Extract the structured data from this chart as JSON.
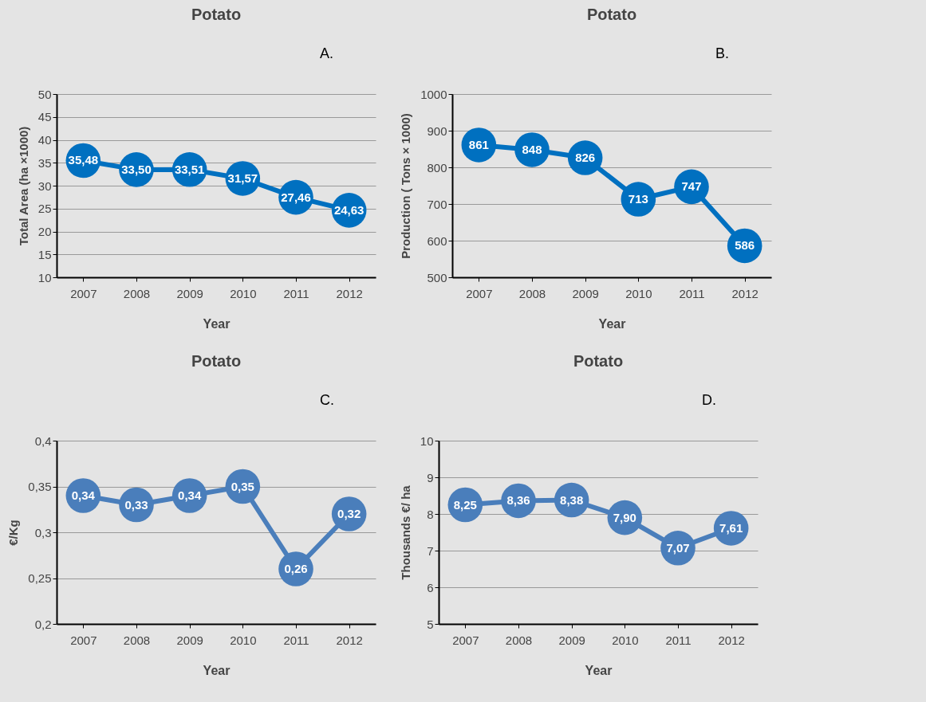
{
  "chart_data": [
    {
      "type": "line",
      "title": "Potato",
      "xlabel": "Year",
      "ylabel": "Total Area (ha ×1000)",
      "annotations": [
        "A."
      ],
      "categories": [
        "2007",
        "2008",
        "2009",
        "2010",
        "2011",
        "2012"
      ],
      "series": [
        {
          "color": "#0070c0",
          "values": [
            35.48,
            33.5,
            33.51,
            31.57,
            27.46,
            24.63
          ],
          "value_labels": [
            "35,48",
            "33,50",
            "33,51",
            "31,57",
            "27,46",
            "24,63"
          ]
        }
      ],
      "ylim": [
        10,
        50
      ],
      "yticks": [
        10,
        15,
        20,
        25,
        30,
        35,
        40,
        45,
        50
      ],
      "grid": "y",
      "marker": "circle"
    },
    {
      "type": "line",
      "title": "Potato",
      "xlabel": "Year",
      "ylabel": "Production ( Tons × 1000)",
      "annotations": [
        "B."
      ],
      "categories": [
        "2007",
        "2008",
        "2009",
        "2010",
        "2011",
        "2012"
      ],
      "series": [
        {
          "color": "#0070c0",
          "values": [
            861,
            848,
            826,
            713,
            747,
            586
          ],
          "value_labels": [
            "861",
            "848",
            "826",
            "713",
            "747",
            "586"
          ]
        }
      ],
      "ylim": [
        500,
        1000
      ],
      "yticks": [
        500,
        600,
        700,
        800,
        900,
        1000
      ],
      "grid": "y",
      "marker": "circle"
    },
    {
      "type": "line",
      "title": "Potato",
      "xlabel": "Year",
      "ylabel": "€/Kg",
      "annotations": [
        "C."
      ],
      "categories": [
        "2007",
        "2008",
        "2009",
        "2010",
        "2011",
        "2012"
      ],
      "series": [
        {
          "color": "#4a7ebb",
          "values": [
            0.34,
            0.33,
            0.34,
            0.35,
            0.26,
            0.32
          ],
          "value_labels": [
            "0,34",
            "0,33",
            "0,34",
            "0,35",
            "0,26",
            "0,32"
          ]
        }
      ],
      "ylim": [
        0.2,
        0.4
      ],
      "yticks": [
        {
          "value": 0.2,
          "label": "0,2"
        },
        {
          "value": 0.25,
          "label": "0,25"
        },
        {
          "value": 0.3,
          "label": "0,3"
        },
        {
          "value": 0.35,
          "label": "0,35"
        },
        {
          "value": 0.4,
          "label": "0,4"
        }
      ],
      "grid": "y",
      "marker": "circle"
    },
    {
      "type": "line",
      "title": "Potato",
      "xlabel": "Year",
      "ylabel": "Thousands €/ ha",
      "annotations": [
        "D."
      ],
      "categories": [
        "2007",
        "2008",
        "2009",
        "2010",
        "2011",
        "2012"
      ],
      "series": [
        {
          "color": "#4a7ebb",
          "values": [
            8.25,
            8.36,
            8.38,
            7.9,
            7.07,
            7.61
          ],
          "value_labels": [
            "8,25",
            "8,36",
            "8,38",
            "7,90",
            "7,07",
            "7,61"
          ]
        }
      ],
      "ylim": [
        5,
        10
      ],
      "yticks": [
        5,
        6,
        7,
        8,
        9,
        10
      ],
      "grid": "y",
      "marker": "circle"
    }
  ]
}
